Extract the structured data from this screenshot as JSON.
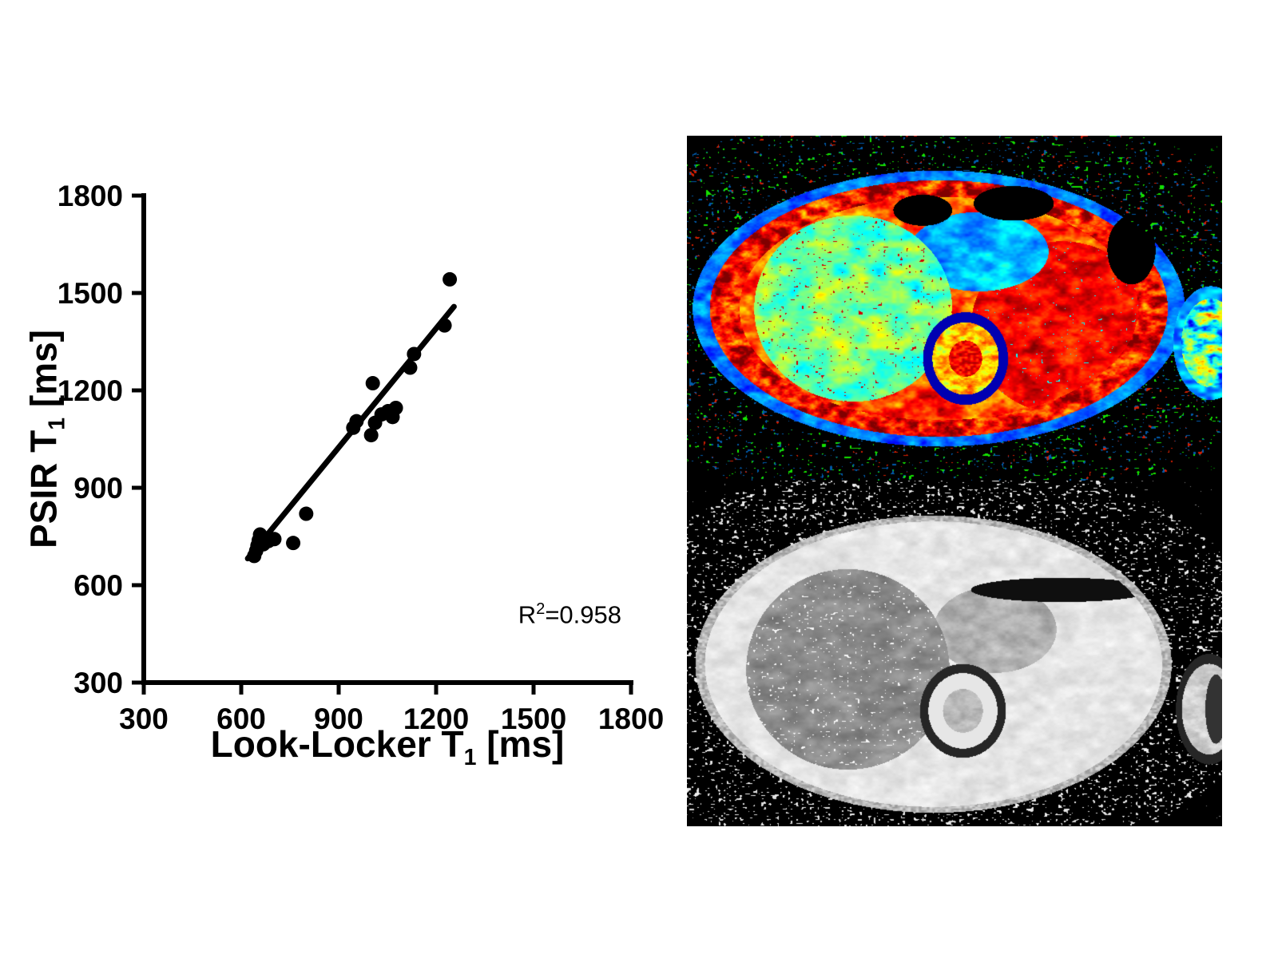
{
  "page": {
    "background": "#ffffff"
  },
  "chart_data": {
    "type": "scatter",
    "title": "",
    "xlabel_parts": {
      "main": "Look-Locker T",
      "sub": "1",
      "unit": " [ms]"
    },
    "ylabel_parts": {
      "main": "PSIR T",
      "sub": "1",
      "unit": " [ms]"
    },
    "xlim": [
      300,
      1800
    ],
    "ylim": [
      300,
      1800
    ],
    "xticks": [
      300,
      600,
      900,
      1200,
      1500,
      1800
    ],
    "yticks": [
      300,
      600,
      900,
      1200,
      1500,
      1800
    ],
    "grid": false,
    "legend": "none",
    "axis_color": "#000000",
    "marker_color": "#000000",
    "line_color": "#000000",
    "points": [
      [
        640,
        690
      ],
      [
        646,
        706
      ],
      [
        650,
        722
      ],
      [
        654,
        738
      ],
      [
        658,
        756
      ],
      [
        668,
        726
      ],
      [
        684,
        736
      ],
      [
        702,
        742
      ],
      [
        760,
        730
      ],
      [
        800,
        820
      ],
      [
        945,
        1085
      ],
      [
        955,
        1105
      ],
      [
        1000,
        1062
      ],
      [
        1005,
        1222
      ],
      [
        1012,
        1100
      ],
      [
        1032,
        1126
      ],
      [
        1052,
        1136
      ],
      [
        1066,
        1118
      ],
      [
        1076,
        1146
      ],
      [
        1120,
        1270
      ],
      [
        1132,
        1312
      ],
      [
        1226,
        1400
      ],
      [
        1242,
        1542
      ]
    ],
    "fit_line": {
      "x1": 620,
      "y1": 682,
      "x2": 1255,
      "y2": 1458
    },
    "annotation": {
      "base": "R",
      "sup": "2",
      "rest": "=0.958"
    }
  },
  "mri_panel": {
    "background": "#000000",
    "top_image_colormap": "jet",
    "bottom_image_colormap": "grayscale"
  }
}
